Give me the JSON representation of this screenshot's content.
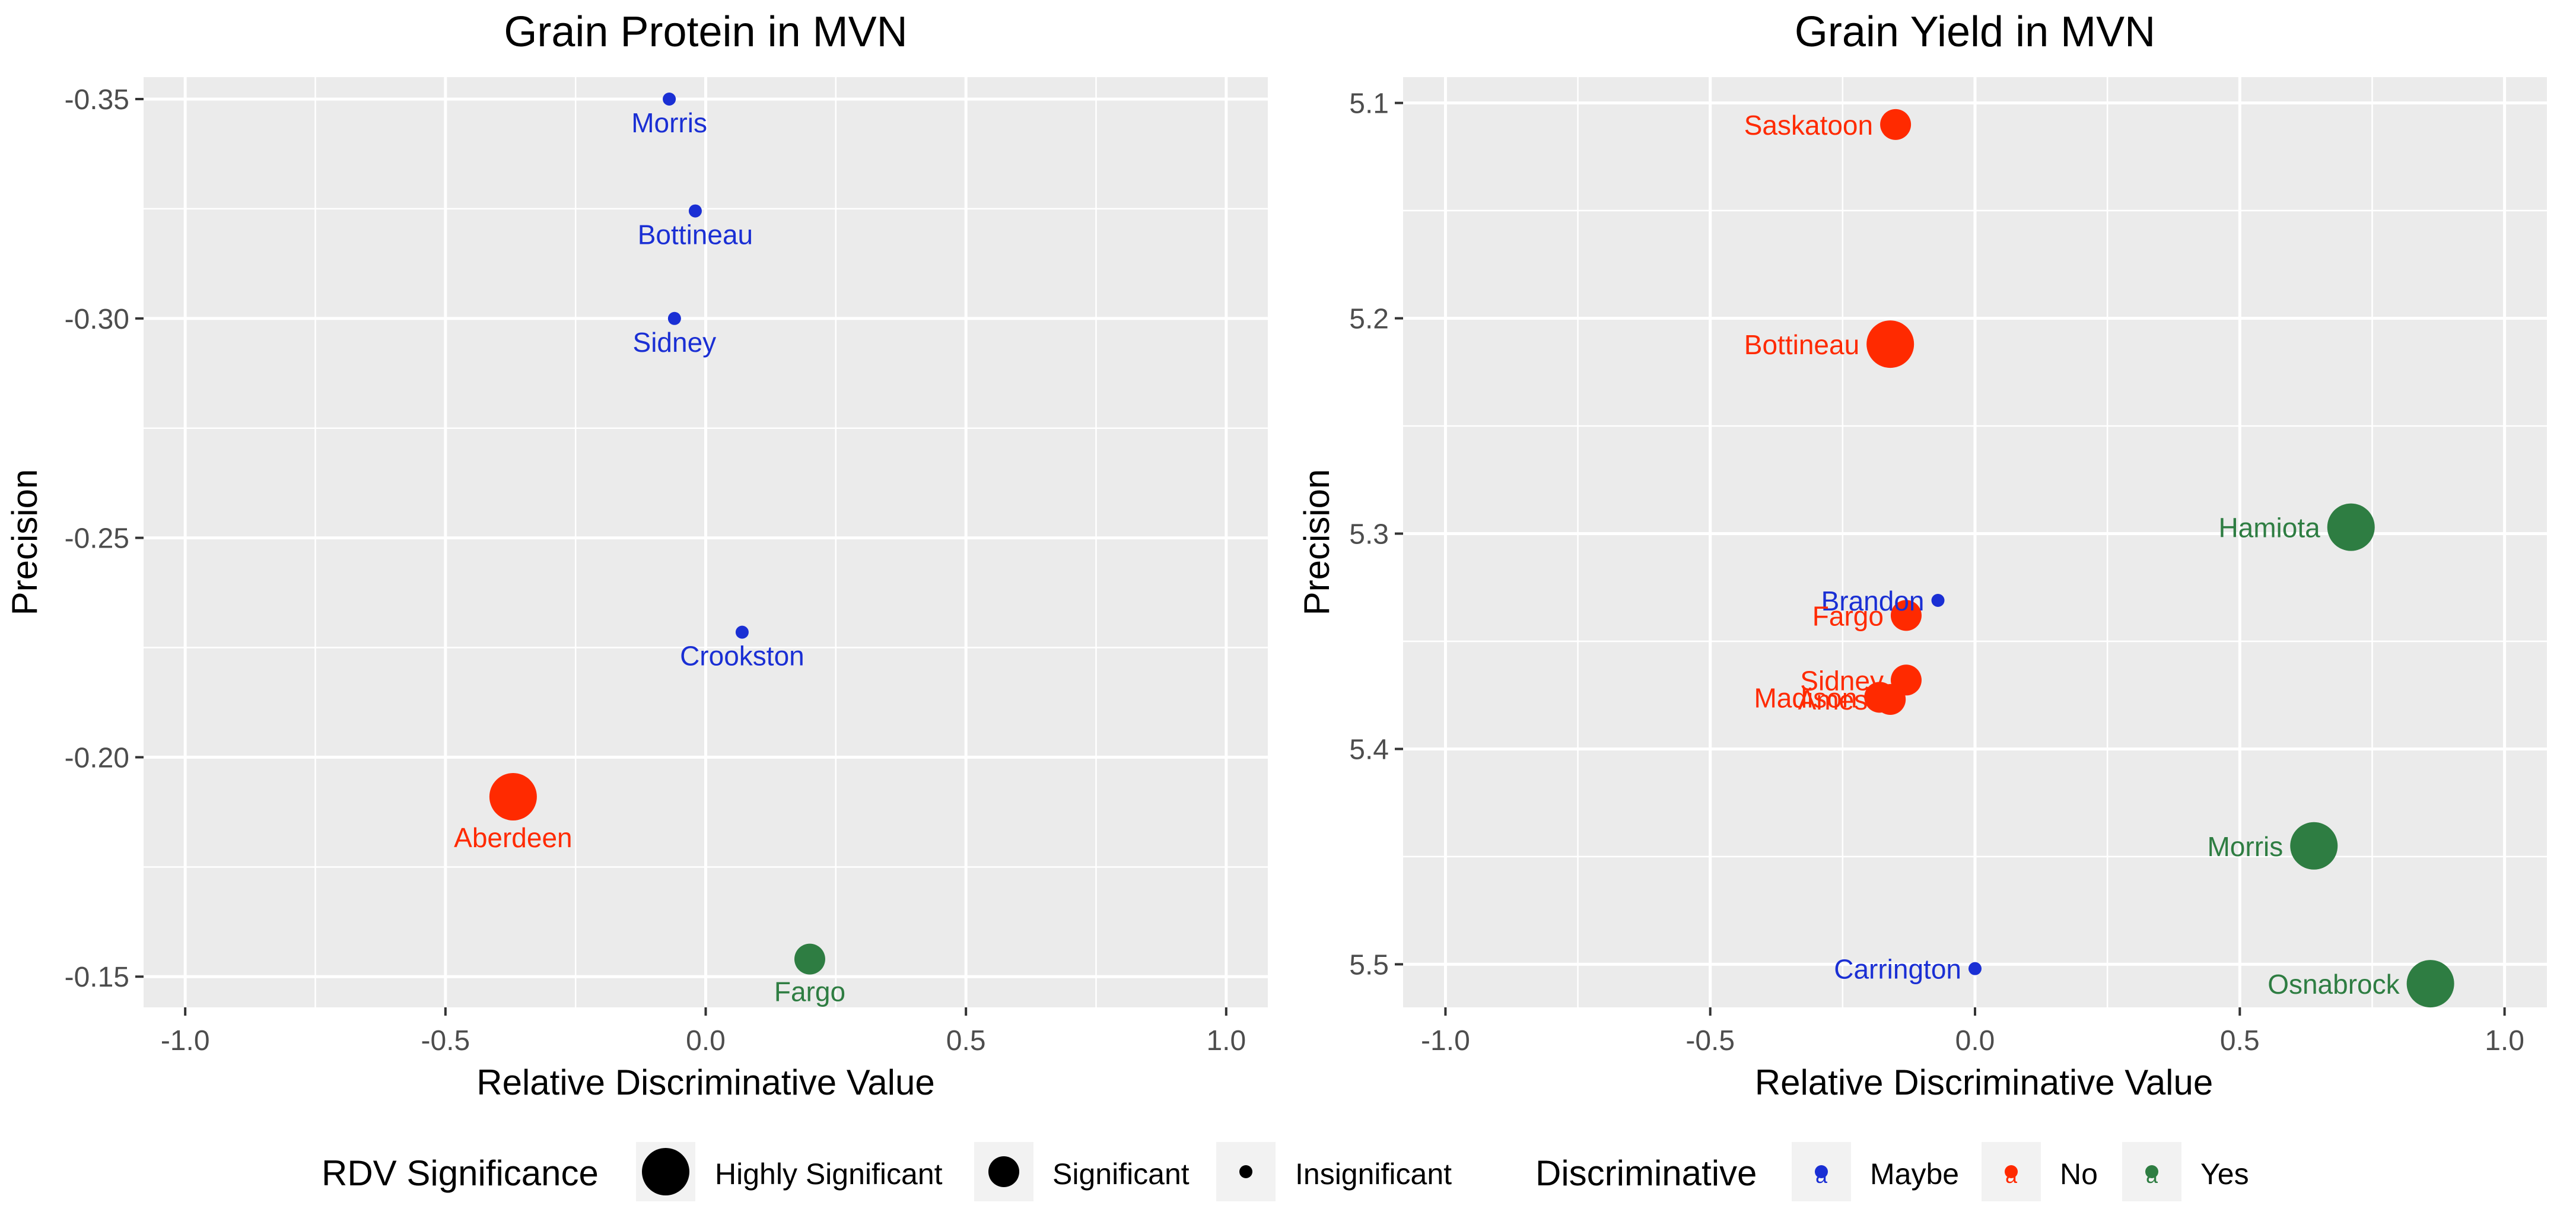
{
  "chart_data": [
    {
      "type": "scatter",
      "title": "Grain Protein in MVN",
      "xlabel": "Relative Discriminative Value",
      "ylabel": "Precision",
      "xlim": [
        -1.08,
        1.08
      ],
      "ylim": [
        -0.355,
        -0.143
      ],
      "y_reversed": true,
      "x_ticks": [
        -1.0,
        -0.5,
        0.0,
        0.5,
        1.0
      ],
      "x_tick_labels": [
        "-1.0",
        "-0.5",
        "0.0",
        "0.5",
        "1.0"
      ],
      "y_ticks": [
        -0.35,
        -0.3,
        -0.25,
        -0.2,
        -0.15
      ],
      "y_tick_labels": [
        "-0.35",
        "-0.30",
        "-0.25",
        "-0.20",
        "-0.15"
      ],
      "grid": true,
      "points": [
        {
          "label": "Morris",
          "x": -0.07,
          "y": -0.35,
          "significance": "Insignificant",
          "discriminative": "Maybe",
          "label_pos": "below"
        },
        {
          "label": "Bottineau",
          "x": -0.02,
          "y": -0.3245,
          "significance": "Insignificant",
          "discriminative": "Maybe",
          "label_pos": "below"
        },
        {
          "label": "Sidney",
          "x": -0.06,
          "y": -0.3,
          "significance": "Insignificant",
          "discriminative": "Maybe",
          "label_pos": "below"
        },
        {
          "label": "Crookston",
          "x": 0.07,
          "y": -0.2285,
          "significance": "Insignificant",
          "discriminative": "Maybe",
          "label_pos": "below"
        },
        {
          "label": "Aberdeen",
          "x": -0.37,
          "y": -0.191,
          "significance": "Highly Significant",
          "discriminative": "No",
          "label_pos": "below"
        },
        {
          "label": "Fargo",
          "x": 0.2,
          "y": -0.154,
          "significance": "Significant",
          "discriminative": "Yes",
          "label_pos": "below"
        }
      ]
    },
    {
      "type": "scatter",
      "title": "Grain Yield in MVN",
      "xlabel": "Relative Discriminative Value",
      "ylabel": "Precision",
      "xlim": [
        -1.08,
        1.08
      ],
      "ylim": [
        5.088,
        5.52
      ],
      "y_reversed": true,
      "x_ticks": [
        -1.0,
        -0.5,
        0.0,
        0.5,
        1.0
      ],
      "x_tick_labels": [
        "-1.0",
        "-0.5",
        "0.0",
        "0.5",
        "1.0"
      ],
      "y_ticks": [
        5.1,
        5.2,
        5.3,
        5.4,
        5.5
      ],
      "y_tick_labels": [
        "5.1",
        "5.2",
        "5.3",
        "5.4",
        "5.5"
      ],
      "grid": true,
      "points": [
        {
          "label": "Saskatoon",
          "x": -0.15,
          "y": 5.11,
          "significance": "Significant",
          "discriminative": "No",
          "label_pos": "left"
        },
        {
          "label": "Bottineau",
          "x": -0.16,
          "y": 5.212,
          "significance": "Highly Significant",
          "discriminative": "No",
          "label_pos": "left"
        },
        {
          "label": "Hamiota",
          "x": 0.71,
          "y": 5.297,
          "significance": "Highly Significant",
          "discriminative": "Yes",
          "label_pos": "left"
        },
        {
          "label": "Brandon",
          "x": -0.07,
          "y": 5.331,
          "significance": "Insignificant",
          "discriminative": "Maybe",
          "label_pos": "left"
        },
        {
          "label": "Fargo",
          "x": -0.13,
          "y": 5.338,
          "significance": "Significant",
          "discriminative": "No",
          "label_pos": "left"
        },
        {
          "label": "Sidney",
          "x": -0.13,
          "y": 5.368,
          "significance": "Significant",
          "discriminative": "No",
          "label_pos": "left"
        },
        {
          "label": "Madison",
          "x": -0.18,
          "y": 5.376,
          "significance": "Significant",
          "discriminative": "No",
          "label_pos": "left"
        },
        {
          "label": "Ames",
          "x": -0.16,
          "y": 5.377,
          "significance": "Significant",
          "discriminative": "No",
          "label_pos": "left"
        },
        {
          "label": "Morris",
          "x": 0.64,
          "y": 5.445,
          "significance": "Highly Significant",
          "discriminative": "Yes",
          "label_pos": "left"
        },
        {
          "label": "Carrington",
          "x": 0.0,
          "y": 5.502,
          "significance": "Insignificant",
          "discriminative": "Maybe",
          "label_pos": "left"
        },
        {
          "label": "Osnabrock",
          "x": 0.86,
          "y": 5.509,
          "significance": "Highly Significant",
          "discriminative": "Yes",
          "label_pos": "left"
        }
      ]
    }
  ],
  "legend": {
    "significance_title": "RDV Significance",
    "significance_items": [
      "Highly Significant",
      "Significant",
      "Insignificant"
    ],
    "discriminative_title": "Discriminative",
    "discriminative_items": [
      "Maybe",
      "No",
      "Yes"
    ],
    "key_glyph": "a"
  },
  "colors": {
    "Maybe": "#1a2fd4",
    "No": "#ff2a00",
    "Yes": "#2e7d42",
    "panel_bg": "#ebebeb",
    "grid": "#ffffff",
    "text": "#000000",
    "tick_text": "#4d4d4d"
  }
}
